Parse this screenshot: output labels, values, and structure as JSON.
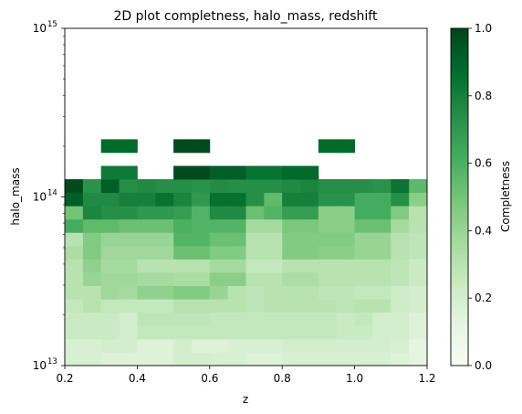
{
  "chart_data": {
    "type": "heatmap",
    "title": "2D plot completness, halo_mass, redshift",
    "xlabel": "z",
    "ylabel": "halo_mass",
    "xlim": [
      0.2,
      1.2
    ],
    "ylim": [
      10000000000000.0,
      1000000000000000.0
    ],
    "yscale": "log",
    "x_ticks": [
      "0.2",
      "0.4",
      "0.6",
      "0.8",
      "1.0",
      "1.2"
    ],
    "x_tick_values": [
      0.2,
      0.4,
      0.6,
      0.8,
      1.0,
      1.2
    ],
    "y_ticks": [
      {
        "base": "10",
        "exp": "13",
        "value": 10000000000000.0
      },
      {
        "base": "10",
        "exp": "14",
        "value": 100000000000000.0
      },
      {
        "base": "10",
        "exp": "15",
        "value": 1000000000000000.0
      }
    ],
    "x_edges": [
      0.2,
      0.25,
      0.3,
      0.35,
      0.4,
      0.45,
      0.5,
      0.55,
      0.6,
      0.65,
      0.7,
      0.75,
      0.8,
      0.85,
      0.9,
      0.95,
      1.0,
      1.05,
      1.1,
      1.15,
      1.2
    ],
    "y_edges_log10": [
      13.0,
      13.0789,
      13.1579,
      13.2368,
      13.3158,
      13.3947,
      13.4737,
      13.5526,
      13.6316,
      13.7105,
      13.7895,
      13.8684,
      13.9474,
      14.0263,
      14.1053,
      14.1842,
      14.2632,
      14.3421
    ],
    "values": [
      [
        0.18,
        0.18,
        0.16,
        0.16,
        0.16,
        0.16,
        0.2,
        0.2,
        0.18,
        0.18,
        0.16,
        0.16,
        0.18,
        0.18,
        0.18,
        0.18,
        0.18,
        0.18,
        0.16,
        0.12
      ],
      [
        0.18,
        0.18,
        0.2,
        0.2,
        0.16,
        0.16,
        0.2,
        0.16,
        0.16,
        0.18,
        0.18,
        0.18,
        0.2,
        0.2,
        0.2,
        0.2,
        0.2,
        0.2,
        0.18,
        0.12
      ],
      [
        0.24,
        0.24,
        0.24,
        0.2,
        0.26,
        0.26,
        0.26,
        0.26,
        0.26,
        0.26,
        0.26,
        0.26,
        0.26,
        0.26,
        0.26,
        0.24,
        0.24,
        0.2,
        0.2,
        0.16
      ],
      [
        0.24,
        0.24,
        0.24,
        0.2,
        0.28,
        0.28,
        0.28,
        0.28,
        0.26,
        0.26,
        0.26,
        0.26,
        0.26,
        0.26,
        0.26,
        0.24,
        0.26,
        0.2,
        0.2,
        0.16
      ],
      [
        0.26,
        0.3,
        0.26,
        0.26,
        0.26,
        0.26,
        0.3,
        0.3,
        0.3,
        0.3,
        0.28,
        0.3,
        0.3,
        0.3,
        0.3,
        0.28,
        0.3,
        0.3,
        0.22,
        0.2
      ],
      [
        0.3,
        0.3,
        0.38,
        0.36,
        0.42,
        0.42,
        0.46,
        0.46,
        0.4,
        0.3,
        0.28,
        0.3,
        0.3,
        0.3,
        0.28,
        0.28,
        0.26,
        0.26,
        0.22,
        0.2
      ],
      [
        0.3,
        0.4,
        0.38,
        0.38,
        0.36,
        0.36,
        0.34,
        0.34,
        0.44,
        0.44,
        0.3,
        0.3,
        0.34,
        0.34,
        0.3,
        0.3,
        0.3,
        0.3,
        0.28,
        0.24
      ],
      [
        0.3,
        0.42,
        0.36,
        0.36,
        0.3,
        0.3,
        0.3,
        0.3,
        0.36,
        0.36,
        0.26,
        0.26,
        0.3,
        0.3,
        0.3,
        0.3,
        0.3,
        0.3,
        0.28,
        0.24
      ],
      [
        0.34,
        0.46,
        0.38,
        0.38,
        0.38,
        0.38,
        0.52,
        0.52,
        0.46,
        0.46,
        0.3,
        0.3,
        0.46,
        0.46,
        0.44,
        0.44,
        0.4,
        0.4,
        0.3,
        0.28
      ],
      [
        0.3,
        0.46,
        0.4,
        0.4,
        0.4,
        0.4,
        0.58,
        0.58,
        0.52,
        0.52,
        0.3,
        0.3,
        0.46,
        0.46,
        0.46,
        0.46,
        0.4,
        0.4,
        0.3,
        0.28
      ],
      [
        0.62,
        0.55,
        0.55,
        0.52,
        0.52,
        0.52,
        0.6,
        0.58,
        0.58,
        0.58,
        0.36,
        0.36,
        0.48,
        0.48,
        0.44,
        0.44,
        0.52,
        0.52,
        0.36,
        0.3
      ],
      [
        0.5,
        0.78,
        0.74,
        0.74,
        0.7,
        0.7,
        0.68,
        0.58,
        0.76,
        0.76,
        0.52,
        0.58,
        0.68,
        0.68,
        0.44,
        0.44,
        0.62,
        0.62,
        0.46,
        0.3
      ],
      [
        0.92,
        0.76,
        0.76,
        0.8,
        0.8,
        0.85,
        0.78,
        0.7,
        0.86,
        0.86,
        0.74,
        0.55,
        0.8,
        0.8,
        0.72,
        0.72,
        0.62,
        0.62,
        0.74,
        0.44
      ],
      [
        0.98,
        0.72,
        0.92,
        0.74,
        0.76,
        0.74,
        0.74,
        0.72,
        0.75,
        0.74,
        0.74,
        0.74,
        0.76,
        0.78,
        0.74,
        0.74,
        0.74,
        0.72,
        0.84,
        0.56
      ],
      [
        null,
        null,
        0.82,
        0.82,
        null,
        null,
        0.98,
        0.98,
        0.92,
        0.92,
        0.85,
        0.85,
        0.88,
        0.88,
        null,
        null,
        null,
        null,
        null,
        null
      ],
      [
        null,
        null,
        null,
        null,
        null,
        null,
        null,
        null,
        null,
        null,
        null,
        null,
        null,
        null,
        null,
        null,
        null,
        null,
        null,
        null
      ],
      [
        null,
        null,
        0.88,
        0.88,
        null,
        null,
        0.98,
        0.98,
        null,
        null,
        null,
        null,
        null,
        null,
        0.88,
        0.88,
        null,
        null,
        null,
        null
      ]
    ],
    "grid": false,
    "colorbar": {
      "label": "Completness",
      "range": [
        0.0,
        1.0
      ],
      "ticks": [
        "0.0",
        "0.2",
        "0.4",
        "0.6",
        "0.8",
        "1.0"
      ],
      "tick_values": [
        0.0,
        0.2,
        0.4,
        0.6,
        0.8,
        1.0
      ],
      "colormap": "Greens"
    }
  }
}
